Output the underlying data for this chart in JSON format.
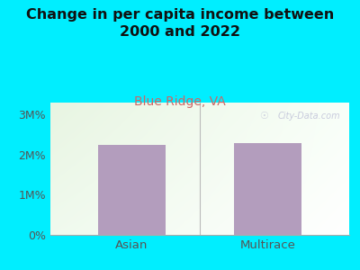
{
  "title": "Change in per capita income between\n2000 and 2022",
  "subtitle": "Blue Ridge, VA",
  "categories": [
    "Asian",
    "Multirace"
  ],
  "values": [
    2.25,
    2.28
  ],
  "bar_color": "#b39dbd",
  "background_outer": "#00eeff",
  "background_inner_top": "#e8f5e2",
  "background_inner_bottom": "#f8fff8",
  "title_fontsize": 11.5,
  "subtitle_fontsize": 10,
  "tick_label_color": "#555555",
  "subtitle_color": "#cc6666",
  "yticks": [
    0,
    1,
    2,
    3
  ],
  "ytick_labels": [
    "0%",
    "1M%",
    "2M%",
    "3M%"
  ],
  "ylim": [
    0,
    3.3
  ],
  "watermark": "City-Data.com"
}
